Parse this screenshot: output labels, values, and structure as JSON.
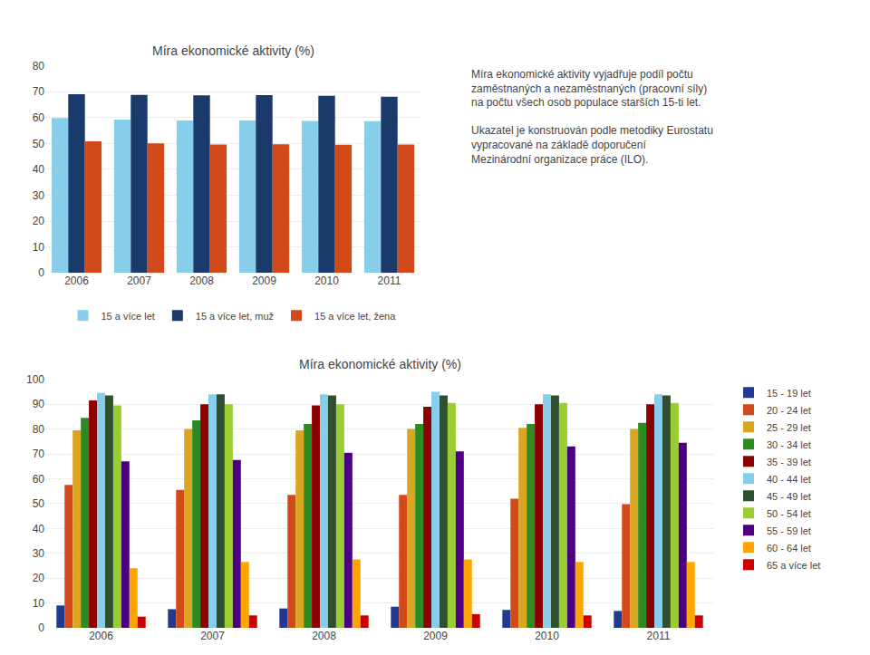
{
  "chart_data": [
    {
      "type": "bar",
      "title": "Míra ekonomické aktivity (%)",
      "categories": [
        "2006",
        "2007",
        "2008",
        "2009",
        "2010",
        "2011"
      ],
      "series": [
        {
          "name": "15 a více let",
          "color": "#87CEEB",
          "values": [
            59.8,
            59.2,
            58.9,
            58.9,
            58.7,
            58.6
          ]
        },
        {
          "name": "15 a více let, muž",
          "color": "#1A3A6B",
          "values": [
            69.0,
            68.8,
            68.6,
            68.7,
            68.4,
            68.1
          ]
        },
        {
          "name": "15 a více let, žena",
          "color": "#D2491A",
          "values": [
            50.8,
            50.0,
            49.6,
            49.7,
            49.5,
            49.6
          ]
        }
      ],
      "ylim": [
        0,
        80
      ],
      "yticks": [
        0,
        10,
        20,
        30,
        40,
        50,
        60,
        70,
        80
      ],
      "grid": true,
      "legend": "bottom",
      "annotations": [
        [
          "Míra ekonomické aktivity vyjadřuje podíl počtu",
          "zaměstnaných a nezaměstnaných (pracovní síly)",
          "na počtu všech osob populace starších 15-ti let."
        ],
        [
          "Ukazatel je konstruován podle metodiky Eurostatu",
          "vypracované na základě doporučení",
          "Mezinárodní organizace práce (ILO)."
        ]
      ]
    },
    {
      "type": "bar",
      "title": "Míra ekonomické aktivity (%)",
      "categories": [
        "2006",
        "2007",
        "2008",
        "2009",
        "2010",
        "2011"
      ],
      "series": [
        {
          "name": "15 - 19 let",
          "color": "#1F3A8F",
          "values": [
            9.0,
            7.5,
            7.8,
            8.5,
            7.2,
            6.8
          ]
        },
        {
          "name": "20 - 24 let",
          "color": "#D2491A",
          "values": [
            57.5,
            55.5,
            53.5,
            53.5,
            52.0,
            49.8
          ]
        },
        {
          "name": "25 - 29 let",
          "color": "#DAA520",
          "values": [
            79.5,
            80.0,
            79.5,
            80.0,
            80.5,
            80.0
          ]
        },
        {
          "name": "30 - 34 let",
          "color": "#2E8B22",
          "values": [
            84.5,
            83.5,
            82.0,
            82.0,
            82.0,
            82.5
          ]
        },
        {
          "name": "35 - 39 let",
          "color": "#8B0000",
          "values": [
            91.5,
            90.0,
            89.5,
            89.0,
            90.0,
            90.0
          ]
        },
        {
          "name": "40 - 44 let",
          "color": "#87CEEB",
          "values": [
            94.5,
            94.0,
            94.0,
            95.0,
            94.0,
            94.0
          ]
        },
        {
          "name": "45 - 49 let",
          "color": "#2F4F2F",
          "values": [
            93.5,
            94.0,
            93.5,
            93.5,
            93.5,
            93.5
          ]
        },
        {
          "name": "50 - 54 let",
          "color": "#9ACD32",
          "values": [
            89.5,
            90.0,
            90.0,
            90.5,
            90.5,
            90.5
          ]
        },
        {
          "name": "55 - 59 let",
          "color": "#4B0082",
          "values": [
            67.0,
            67.5,
            70.5,
            71.0,
            73.0,
            74.5
          ]
        },
        {
          "name": "60 - 64 let",
          "color": "#FFA500",
          "values": [
            24.0,
            26.5,
            27.5,
            27.5,
            26.5,
            26.5
          ]
        },
        {
          "name": "65 a více let",
          "color": "#CC0000",
          "values": [
            4.5,
            5.0,
            5.0,
            5.5,
            5.0,
            5.0
          ]
        }
      ],
      "ylim": [
        0,
        100
      ],
      "yticks": [
        0,
        10,
        20,
        30,
        40,
        50,
        60,
        70,
        80,
        90,
        100
      ],
      "grid": true,
      "legend": "right"
    }
  ]
}
